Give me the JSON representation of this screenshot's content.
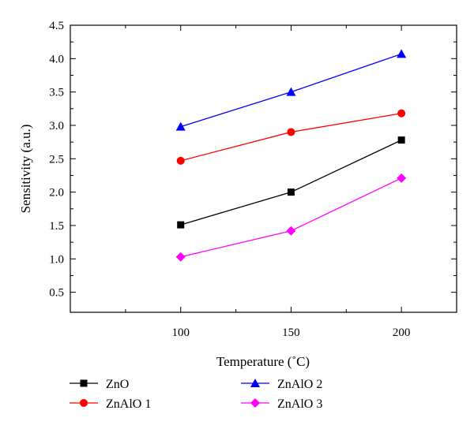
{
  "chart_data": {
    "type": "line",
    "title": "",
    "xlabel": "Temperature (˚C)",
    "ylabel": "Sensitivity (a.u.)",
    "x": [
      100,
      150,
      200
    ],
    "xticks": [
      "100",
      "150",
      "200"
    ],
    "xlim": [
      50,
      225
    ],
    "ylim": [
      0.2,
      4.5
    ],
    "yticks": [
      "0.5",
      "1.0",
      "1.5",
      "2.0",
      "2.5",
      "3.0",
      "3.5",
      "4.0",
      "4.5"
    ],
    "legend_position": "bottom",
    "series": [
      {
        "name": "ZnO",
        "values": [
          1.51,
          2.0,
          2.78
        ],
        "color": "#000000",
        "marker": "square"
      },
      {
        "name": "ZnAlO 1",
        "values": [
          2.47,
          2.9,
          3.18
        ],
        "color": "#ff0000",
        "marker": "circle"
      },
      {
        "name": "ZnAlO 2",
        "values": [
          2.98,
          3.5,
          4.07
        ],
        "color": "#0000ff",
        "marker": "triangle"
      },
      {
        "name": "ZnAlO 3",
        "values": [
          1.03,
          1.42,
          2.21
        ],
        "color": "#ff00ff",
        "marker": "diamond"
      }
    ]
  }
}
